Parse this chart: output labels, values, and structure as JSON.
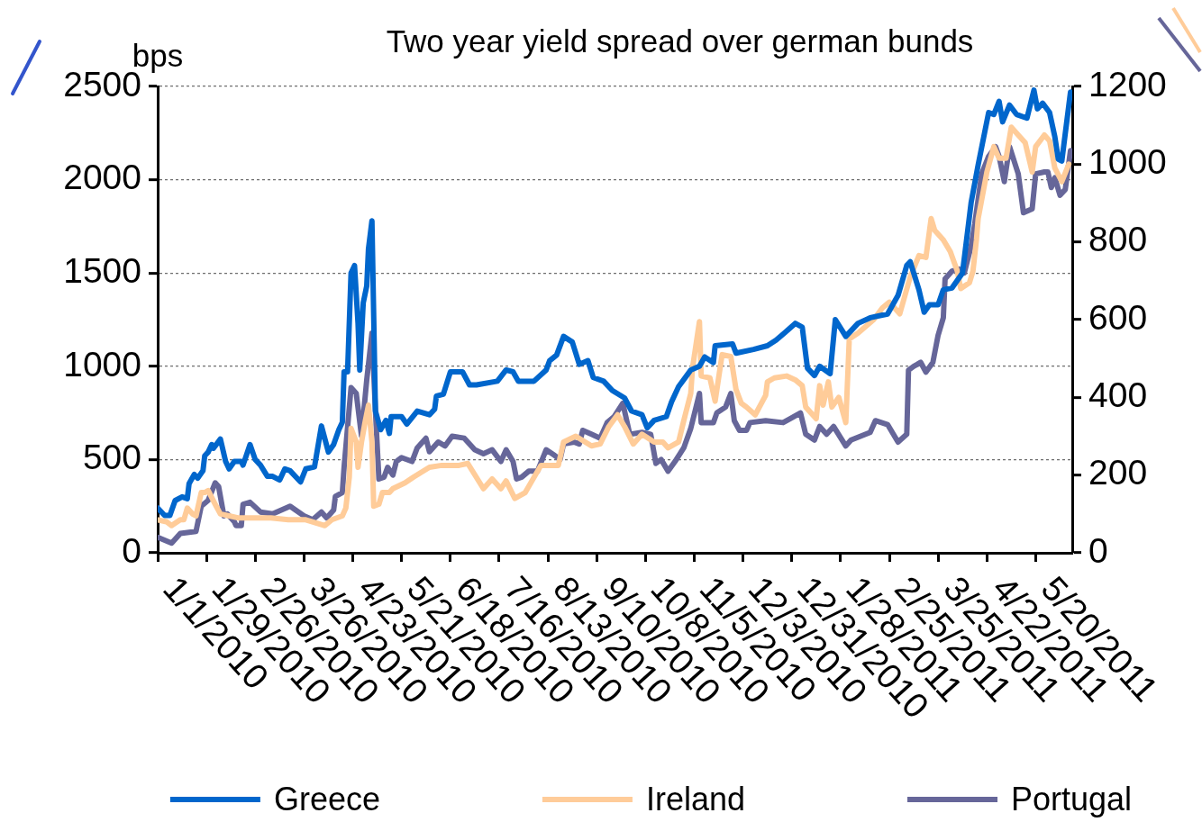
{
  "chart_data": {
    "type": "line",
    "title": "Two year yield spread over german bunds",
    "ylabel": "bps",
    "xlim": [
      "2010-01-01",
      "2011-06-10"
    ],
    "xticks": [
      {
        "value": "2010-01-01",
        "label": "1/1/2010"
      },
      {
        "value": "2010-01-29",
        "label": "1/29/2010"
      },
      {
        "value": "2010-02-26",
        "label": "2/26/2010"
      },
      {
        "value": "2010-03-26",
        "label": "3/26/2010"
      },
      {
        "value": "2010-04-23",
        "label": "4/23/2010"
      },
      {
        "value": "2010-05-21",
        "label": "5/21/2010"
      },
      {
        "value": "2010-06-18",
        "label": "6/18/2010"
      },
      {
        "value": "2010-07-16",
        "label": "7/16/2010"
      },
      {
        "value": "2010-08-13",
        "label": "8/13/2010"
      },
      {
        "value": "2010-09-10",
        "label": "9/10/2010"
      },
      {
        "value": "2010-10-08",
        "label": "10/8/2010"
      },
      {
        "value": "2010-11-05",
        "label": "11/5/2010"
      },
      {
        "value": "2010-12-03",
        "label": "12/3/2010"
      },
      {
        "value": "2010-12-31",
        "label": "12/31/2010"
      },
      {
        "value": "2011-01-28",
        "label": "1/28/2011"
      },
      {
        "value": "2011-02-25",
        "label": "2/25/2011"
      },
      {
        "value": "2011-03-25",
        "label": "3/25/2011"
      },
      {
        "value": "2011-04-22",
        "label": "4/22/2011"
      },
      {
        "value": "2011-05-20",
        "label": "5/20/2011"
      }
    ],
    "ylim": [
      0,
      2500
    ],
    "yticks": [
      0,
      500,
      1000,
      1500,
      2000,
      2500
    ],
    "y2lim": [
      0,
      1200
    ],
    "y2ticks": [
      0,
      200,
      400,
      600,
      800,
      1000,
      1200
    ],
    "grid": "y",
    "legend": "bottom",
    "marker": "none",
    "line_style": "solid",
    "series": [
      {
        "name": "Greece",
        "color": "#0066cc",
        "x": [
          "2010-01-01",
          "2010-01-05",
          "2010-01-08",
          "2010-01-11",
          "2010-01-15",
          "2010-01-18",
          "2010-01-19",
          "2010-01-22",
          "2010-01-24",
          "2010-01-27",
          "2010-01-28",
          "2010-01-30",
          "2010-02-01",
          "2010-02-02",
          "2010-02-06",
          "2010-02-09",
          "2010-02-11",
          "2010-02-14",
          "2010-02-18",
          "2010-02-19",
          "2010-02-23",
          "2010-02-26",
          "2010-03-01",
          "2010-03-05",
          "2010-03-08",
          "2010-03-12",
          "2010-03-15",
          "2010-03-18",
          "2010-03-24",
          "2010-03-27",
          "2010-04-01",
          "2010-04-05",
          "2010-04-09",
          "2010-04-12",
          "2010-04-15",
          "2010-04-17",
          "2010-04-18",
          "2010-04-20",
          "2010-04-22",
          "2010-04-24",
          "2010-04-26",
          "2010-04-27",
          "2010-04-29",
          "2010-05-01",
          "2010-05-02",
          "2010-05-04",
          "2010-05-06",
          "2010-05-09",
          "2010-05-12",
          "2010-05-14",
          "2010-05-15",
          "2010-05-21",
          "2010-05-24",
          "2010-05-30",
          "2010-06-06",
          "2010-06-09",
          "2010-06-10",
          "2010-06-14",
          "2010-06-18",
          "2010-06-25",
          "2010-06-29",
          "2010-07-03",
          "2010-07-15",
          "2010-07-20",
          "2010-07-24",
          "2010-07-27",
          "2010-08-05",
          "2010-08-12",
          "2010-08-14",
          "2010-08-18",
          "2010-08-22",
          "2010-08-27",
          "2010-08-31",
          "2010-09-05",
          "2010-09-08",
          "2010-09-14",
          "2010-09-19",
          "2010-09-26",
          "2010-09-30",
          "2010-10-06",
          "2010-10-09",
          "2010-10-13",
          "2010-10-20",
          "2010-10-23",
          "2010-10-27",
          "2010-11-03",
          "2010-11-08",
          "2010-11-11",
          "2010-11-16",
          "2010-11-17",
          "2010-11-27",
          "2010-11-29",
          "2010-12-09",
          "2010-12-17",
          "2010-12-22",
          "2010-12-27",
          "2011-01-02",
          "2011-01-06",
          "2011-01-09",
          "2011-01-13",
          "2011-01-16",
          "2011-01-22",
          "2011-01-25",
          "2011-01-31",
          "2011-02-07",
          "2011-02-14",
          "2011-02-24",
          "2011-03-02",
          "2011-03-07",
          "2011-03-09",
          "2011-03-14",
          "2011-03-17",
          "2011-03-20",
          "2011-03-25",
          "2011-03-28",
          "2011-04-02",
          "2011-04-08",
          "2011-04-13",
          "2011-04-17",
          "2011-04-23",
          "2011-04-26",
          "2011-04-29",
          "2011-05-01",
          "2011-05-05",
          "2011-05-09",
          "2011-05-15",
          "2011-05-19",
          "2011-05-21",
          "2011-05-24",
          "2011-05-28",
          "2011-05-31",
          "2011-06-02",
          "2011-06-04",
          "2011-06-09"
        ],
        "values": [
          240,
          200,
          200,
          280,
          300,
          290,
          370,
          420,
          400,
          440,
          520,
          540,
          580,
          560,
          610,
          490,
          450,
          490,
          490,
          470,
          580,
          500,
          470,
          410,
          410,
          390,
          450,
          440,
          380,
          450,
          460,
          680,
          540,
          580,
          660,
          700,
          970,
          970,
          1500,
          1540,
          1230,
          980,
          1340,
          1430,
          1630,
          1780,
          760,
          660,
          710,
          640,
          730,
          730,
          690,
          760,
          740,
          770,
          840,
          850,
          970,
          970,
          900,
          900,
          920,
          980,
          970,
          920,
          920,
          980,
          1030,
          1060,
          1160,
          1130,
          1010,
          1030,
          940,
          920,
          870,
          830,
          760,
          740,
          670,
          710,
          730,
          810,
          890,
          980,
          1000,
          1050,
          1020,
          1110,
          1120,
          1070,
          1090,
          1110,
          1140,
          1180,
          1230,
          1210,
          990,
          950,
          1000,
          960,
          1250,
          1160,
          1230,
          1260,
          1280,
          1380,
          1540,
          1560,
          1410,
          1290,
          1330,
          1330,
          1410,
          1420,
          1500,
          1880,
          2080,
          2360,
          2350,
          2420,
          2310,
          2400,
          2350,
          2330,
          2480,
          2380,
          2410,
          2360,
          2230,
          2110,
          2100,
          2470
        ]
      },
      {
        "name": "Ireland",
        "color": "#ffcc99",
        "axis": "y2",
        "x": [
          "2010-01-01",
          "2010-01-06",
          "2010-01-09",
          "2010-01-14",
          "2010-01-16",
          "2010-01-18",
          "2010-01-21",
          "2010-01-23",
          "2010-01-26",
          "2010-01-28",
          "2010-01-30",
          "2010-02-03",
          "2010-02-06",
          "2010-02-11",
          "2010-02-16",
          "2010-02-24",
          "2010-03-07",
          "2010-03-17",
          "2010-03-27",
          "2010-04-07",
          "2010-04-11",
          "2010-04-17",
          "2010-04-19",
          "2010-04-21",
          "2010-04-22",
          "2010-04-25",
          "2010-04-26",
          "2010-04-28",
          "2010-04-30",
          "2010-05-02",
          "2010-05-04",
          "2010-05-05",
          "2010-05-08",
          "2010-05-10",
          "2010-05-14",
          "2010-05-16",
          "2010-05-23",
          "2010-05-28",
          "2010-06-06",
          "2010-06-13",
          "2010-06-23",
          "2010-06-28",
          "2010-07-07",
          "2010-07-12",
          "2010-07-17",
          "2010-07-20",
          "2010-07-25",
          "2010-07-31",
          "2010-08-09",
          "2010-08-19",
          "2010-08-22",
          "2010-08-29",
          "2010-09-07",
          "2010-09-12",
          "2010-09-17",
          "2010-09-22",
          "2010-09-26",
          "2010-10-01",
          "2010-10-06",
          "2010-10-13",
          "2010-10-18",
          "2010-10-21",
          "2010-10-27",
          "2010-10-30",
          "2010-11-03",
          "2010-11-04",
          "2010-11-08",
          "2010-11-09",
          "2010-11-14",
          "2010-11-17",
          "2010-11-19",
          "2010-11-21",
          "2010-11-26",
          "2010-11-29",
          "2010-12-02",
          "2010-12-05",
          "2010-12-10",
          "2010-12-16",
          "2010-12-17",
          "2010-12-21",
          "2010-12-28",
          "2011-01-02",
          "2011-01-06",
          "2011-01-08",
          "2011-01-14",
          "2011-01-16",
          "2011-01-18",
          "2011-01-21",
          "2011-01-23",
          "2011-01-27",
          "2011-01-31",
          "2011-02-02",
          "2011-02-07",
          "2011-02-16",
          "2011-02-21",
          "2011-02-25",
          "2011-03-03",
          "2011-03-09",
          "2011-03-14",
          "2011-03-18",
          "2011-03-21",
          "2011-03-23",
          "2011-03-28",
          "2011-04-01",
          "2011-04-05",
          "2011-04-07",
          "2011-04-12",
          "2011-04-14",
          "2011-04-16",
          "2011-04-17",
          "2011-04-22",
          "2011-04-26",
          "2011-04-29",
          "2011-05-03",
          "2011-05-06",
          "2011-05-10",
          "2011-05-14",
          "2011-05-18",
          "2011-05-20",
          "2011-05-25",
          "2011-05-28",
          "2011-05-31",
          "2011-06-04",
          "2011-06-08"
        ],
        "values": [
          85,
          80,
          70,
          85,
          85,
          115,
          100,
          95,
          155,
          155,
          160,
          125,
          100,
          95,
          90,
          90,
          90,
          85,
          85,
          70,
          85,
          95,
          115,
          195,
          320,
          285,
          220,
          285,
          335,
          380,
          285,
          120,
          125,
          155,
          155,
          165,
          180,
          195,
          220,
          225,
          225,
          230,
          165,
          190,
          165,
          185,
          140,
          155,
          225,
          225,
          285,
          300,
          275,
          280,
          325,
          355,
          325,
          280,
          305,
          285,
          285,
          270,
          285,
          340,
          410,
          475,
          595,
          455,
          450,
          390,
          450,
          510,
          505,
          420,
          385,
          375,
          355,
          405,
          440,
          450,
          455,
          445,
          430,
          375,
          345,
          430,
          380,
          440,
          375,
          400,
          335,
          550,
          565,
          600,
          630,
          645,
          615,
          710,
          765,
          760,
          860,
          830,
          805,
          775,
          725,
          680,
          695,
          725,
          805,
          860,
          980,
          1045,
          1015,
          1015,
          1095,
          1075,
          1055,
          980,
          1045,
          1075,
          1060,
          990,
          955,
          1000
        ]
      },
      {
        "name": "Portugal",
        "color": "#666699",
        "axis": "y2",
        "x": [
          "2010-01-01",
          "2010-01-09",
          "2010-01-14",
          "2010-01-23",
          "2010-01-26",
          "2010-01-30",
          "2010-02-03",
          "2010-02-05",
          "2010-02-08",
          "2010-02-10",
          "2010-02-14",
          "2010-02-15",
          "2010-02-18",
          "2010-02-19",
          "2010-02-23",
          "2010-03-01",
          "2010-03-08",
          "2010-03-13",
          "2010-03-18",
          "2010-03-26",
          "2010-03-31",
          "2010-04-05",
          "2010-04-08",
          "2010-04-12",
          "2010-04-13",
          "2010-04-17",
          "2010-04-18",
          "2010-04-22",
          "2010-04-25",
          "2010-04-28",
          "2010-05-01",
          "2010-05-04",
          "2010-05-06",
          "2010-05-08",
          "2010-05-11",
          "2010-05-13",
          "2010-05-16",
          "2010-05-18",
          "2010-05-21",
          "2010-05-27",
          "2010-05-30",
          "2010-06-04",
          "2010-06-06",
          "2010-06-11",
          "2010-06-15",
          "2010-06-19",
          "2010-06-26",
          "2010-07-02",
          "2010-07-07",
          "2010-07-12",
          "2010-07-17",
          "2010-07-20",
          "2010-07-24",
          "2010-07-26",
          "2010-07-29",
          "2010-08-02",
          "2010-08-07",
          "2010-08-12",
          "2010-08-17",
          "2010-08-20",
          "2010-08-22",
          "2010-08-28",
          "2010-08-31",
          "2010-09-02",
          "2010-09-07",
          "2010-09-12",
          "2010-09-16",
          "2010-09-20",
          "2010-09-25",
          "2010-09-29",
          "2010-10-06",
          "2010-10-11",
          "2010-10-14",
          "2010-10-17",
          "2010-10-21",
          "2010-10-25",
          "2010-10-30",
          "2010-11-03",
          "2010-11-08",
          "2010-11-09",
          "2010-11-16",
          "2010-11-18",
          "2010-11-23",
          "2010-11-26",
          "2010-11-28",
          "2010-12-01",
          "2010-12-05",
          "2010-12-07",
          "2010-12-16",
          "2010-12-26",
          "2010-12-30",
          "2011-01-05",
          "2011-01-08",
          "2011-01-13",
          "2011-01-16",
          "2011-01-20",
          "2011-01-24",
          "2011-01-31",
          "2011-02-03",
          "2011-02-14",
          "2011-02-17",
          "2011-02-24",
          "2011-03-02",
          "2011-03-07",
          "2011-03-08",
          "2011-03-11",
          "2011-03-15",
          "2011-03-18",
          "2011-03-22",
          "2011-03-25",
          "2011-03-28",
          "2011-03-29",
          "2011-04-02",
          "2011-04-06",
          "2011-04-09",
          "2011-04-13",
          "2011-04-15",
          "2011-04-19",
          "2011-04-23",
          "2011-04-27",
          "2011-04-29",
          "2011-05-02",
          "2011-05-05",
          "2011-05-10",
          "2011-05-13",
          "2011-05-18",
          "2011-05-20",
          "2011-05-25",
          "2011-05-27",
          "2011-05-29",
          "2011-05-31",
          "2011-06-03",
          "2011-06-06",
          "2011-06-09"
        ],
        "values": [
          40,
          25,
          50,
          55,
          120,
          135,
          180,
          170,
          95,
          100,
          80,
          70,
          70,
          125,
          130,
          105,
          100,
          110,
          120,
          95,
          85,
          105,
          90,
          110,
          145,
          155,
          220,
          425,
          410,
          300,
          445,
          565,
          365,
          190,
          195,
          220,
          200,
          235,
          245,
          235,
          270,
          295,
          260,
          285,
          275,
          300,
          295,
          265,
          255,
          265,
          235,
          265,
          235,
          190,
          195,
          210,
          210,
          265,
          250,
          240,
          280,
          285,
          280,
          315,
          305,
          295,
          335,
          350,
          385,
          305,
          310,
          305,
          230,
          240,
          210,
          235,
          270,
          320,
          410,
          335,
          335,
          360,
          375,
          410,
          340,
          315,
          315,
          335,
          340,
          335,
          345,
          360,
          305,
          290,
          325,
          305,
          325,
          275,
          290,
          310,
          340,
          330,
          285,
          305,
          470,
          480,
          490,
          465,
          490,
          560,
          605,
          705,
          725,
          730,
          720,
          790,
          845,
          975,
          1020,
          1045,
          1020,
          955,
          1045,
          975,
          875,
          885,
          975,
          980,
          980,
          940,
          965,
          920,
          935,
          1035
        ]
      }
    ]
  }
}
